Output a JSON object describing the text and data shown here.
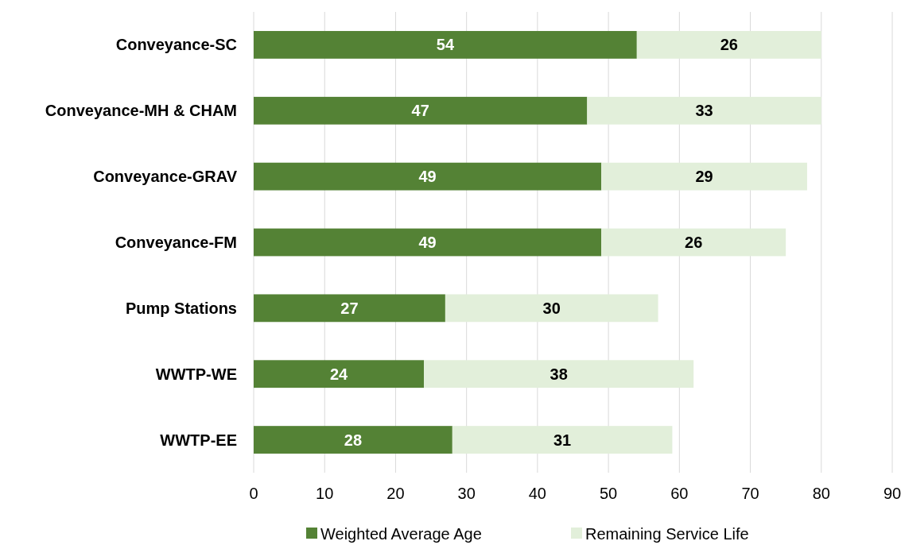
{
  "chart_data": {
    "type": "bar",
    "orientation": "horizontal",
    "stacked": true,
    "categories": [
      "Conveyance-SC",
      "Conveyance-MH & CHAM",
      "Conveyance-GRAV",
      "Conveyance-FM",
      "Pump Stations",
      "WWTP-WE",
      "WWTP-EE"
    ],
    "series": [
      {
        "name": "Weighted Average Age",
        "color": "#548235",
        "values": [
          54,
          47,
          49,
          49,
          27,
          24,
          28
        ]
      },
      {
        "name": "Remaining Service Life",
        "color": "#e2efda",
        "values": [
          26,
          33,
          29,
          26,
          30,
          38,
          31
        ]
      }
    ],
    "xlim": [
      0,
      90
    ],
    "xticks": [
      0,
      10,
      20,
      30,
      40,
      50,
      60,
      70,
      80,
      90
    ],
    "grid": "x",
    "legend": "bottom",
    "data_labels": true
  }
}
